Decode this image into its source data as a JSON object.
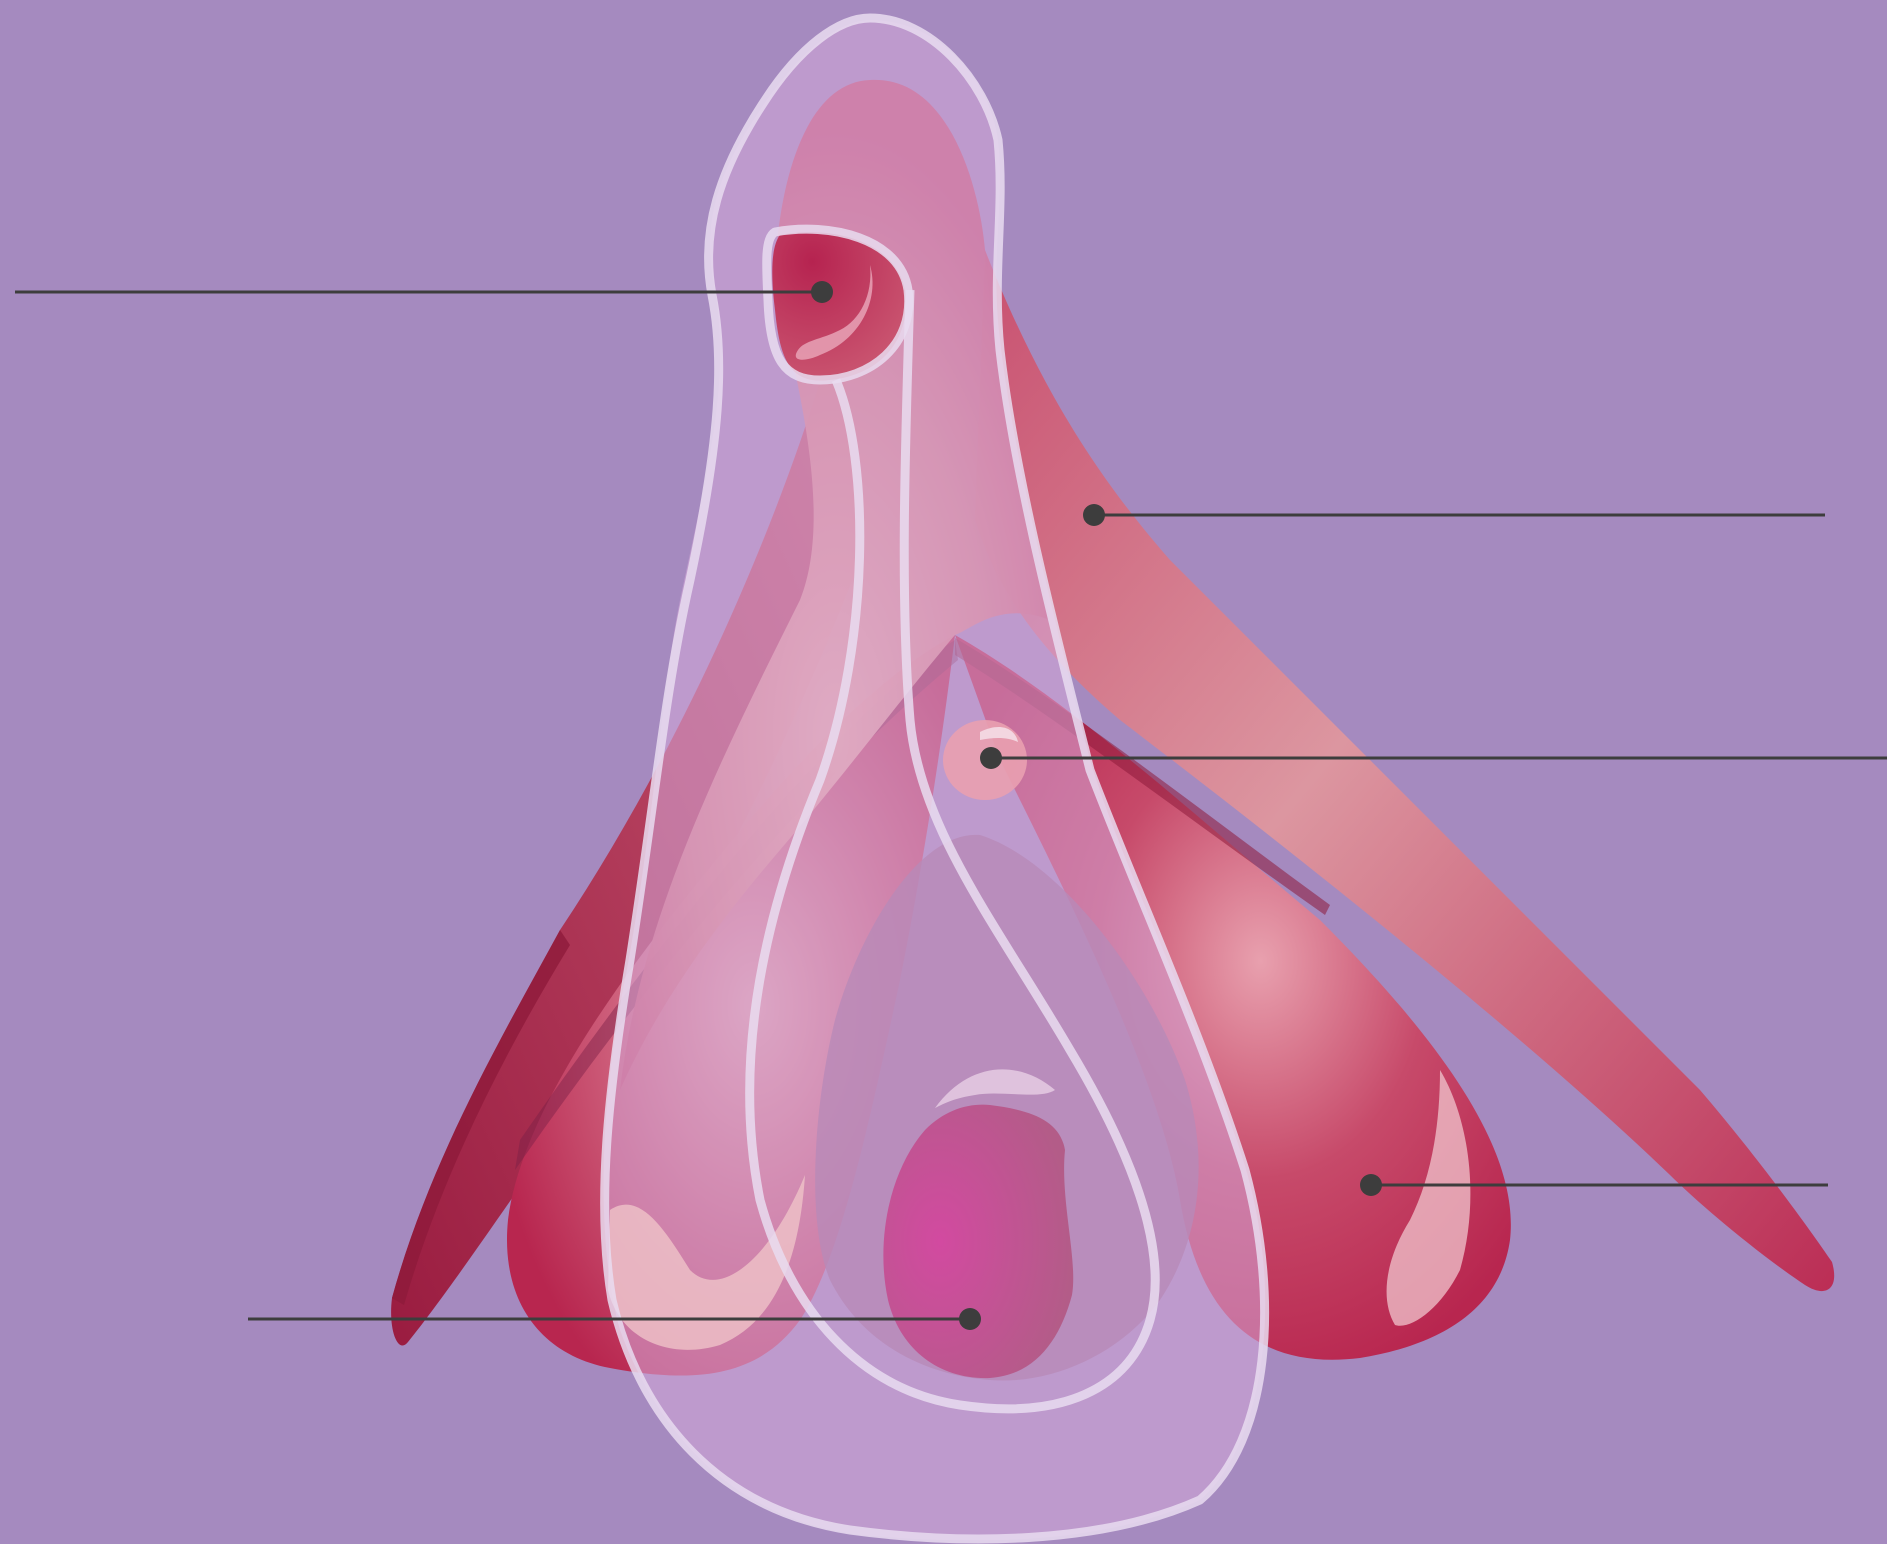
{
  "diagram": {
    "background": "#a58abf",
    "colors": {
      "crimson": "#b8264f",
      "deep_crimson": "#8e1a3b",
      "rose": "#d9727f",
      "light_rose": "#eda8a4",
      "hood_pink": "#cf9bca",
      "magenta": "#c4479a",
      "outline": "#e9dcf0",
      "leader": "#3d3d3d"
    },
    "labels": [
      {
        "id": "glans-pointer",
        "text": ""
      },
      {
        "id": "crus-pointer",
        "text": ""
      },
      {
        "id": "urethral-opening-pointer",
        "text": ""
      },
      {
        "id": "vestibular-bulb-pointer",
        "text": ""
      },
      {
        "id": "vaginal-opening-pointer",
        "text": ""
      }
    ]
  }
}
